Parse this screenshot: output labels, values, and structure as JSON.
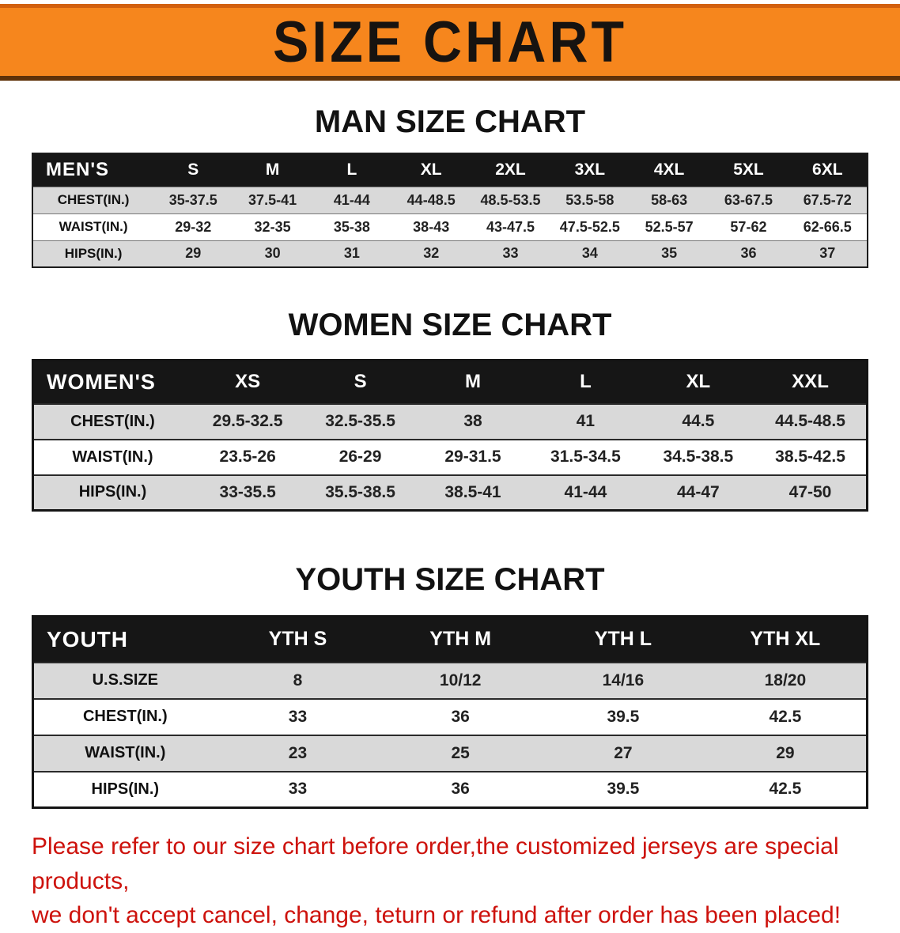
{
  "banner": {
    "title": "SIZE CHART"
  },
  "colors": {
    "banner_bg": "#f6861d",
    "banner_top_edge": "#d2600f",
    "banner_bottom_edge": "#5f3108",
    "table_header_bg": "#161616",
    "table_header_text": "#ffffff",
    "row_alt_bg": "#d9d9d9",
    "note_text": "#cd120c"
  },
  "sections": [
    {
      "heading": "MAN SIZE CHART",
      "table": {
        "corner": "MEN'S",
        "columns": [
          "S",
          "M",
          "L",
          "XL",
          "2XL",
          "3XL",
          "4XL",
          "5XL",
          "6XL"
        ],
        "rows": [
          {
            "label": "CHEST(IN.)",
            "values": [
              "35-37.5",
              "37.5-41",
              "41-44",
              "44-48.5",
              "48.5-53.5",
              "53.5-58",
              "58-63",
              "63-67.5",
              "67.5-72"
            ]
          },
          {
            "label": "WAIST(IN.)",
            "values": [
              "29-32",
              "32-35",
              "35-38",
              "38-43",
              "43-47.5",
              "47.5-52.5",
              "52.5-57",
              "57-62",
              "62-66.5"
            ]
          },
          {
            "label": "HIPS(IN.)",
            "values": [
              "29",
              "30",
              "31",
              "32",
              "33",
              "34",
              "35",
              "36",
              "37"
            ]
          }
        ]
      }
    },
    {
      "heading": "WOMEN SIZE CHART",
      "table": {
        "corner": "WOMEN'S",
        "columns": [
          "XS",
          "S",
          "M",
          "L",
          "XL",
          "XXL"
        ],
        "rows": [
          {
            "label": "CHEST(IN.)",
            "values": [
              "29.5-32.5",
              "32.5-35.5",
              "38",
              "41",
              "44.5",
              "44.5-48.5"
            ]
          },
          {
            "label": "WAIST(IN.)",
            "values": [
              "23.5-26",
              "26-29",
              "29-31.5",
              "31.5-34.5",
              "34.5-38.5",
              "38.5-42.5"
            ]
          },
          {
            "label": "HIPS(IN.)",
            "values": [
              "33-35.5",
              "35.5-38.5",
              "38.5-41",
              "41-44",
              "44-47",
              "47-50"
            ]
          }
        ]
      }
    },
    {
      "heading": "YOUTH SIZE CHART",
      "table": {
        "corner": "YOUTH",
        "columns": [
          "YTH S",
          "YTH M",
          "YTH L",
          "YTH XL"
        ],
        "rows": [
          {
            "label": "U.S.SIZE",
            "values": [
              "8",
              "10/12",
              "14/16",
              "18/20"
            ]
          },
          {
            "label": "CHEST(IN.)",
            "values": [
              "33",
              "36",
              "39.5",
              "42.5"
            ]
          },
          {
            "label": "WAIST(IN.)",
            "values": [
              "23",
              "25",
              "27",
              "29"
            ]
          },
          {
            "label": "HIPS(IN.)",
            "values": [
              "33",
              "36",
              "39.5",
              "42.5"
            ]
          }
        ]
      }
    }
  ],
  "note": {
    "line1": "Please refer to our size chart before order,the customized jerseys are special products,",
    "line2": "we don't accept cancel, change, teturn or refund after order has been placed!"
  }
}
